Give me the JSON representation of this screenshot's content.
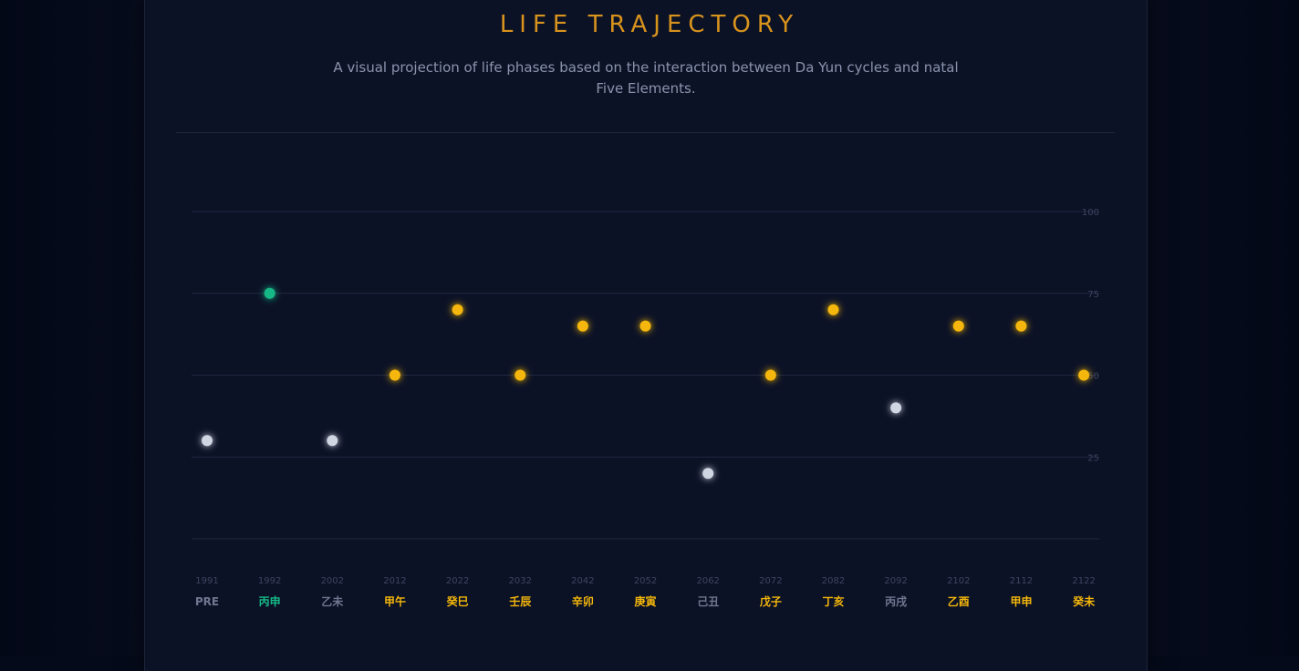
{
  "header": {
    "title": "LIFE TRAJECTORY",
    "subtitle": "A visual projection of life phases based on the interaction between Da Yun cycles and natal Five Elements."
  },
  "colors": {
    "accent": "#d8931c",
    "favorable": "#f5b70a",
    "peak": "#16b886",
    "neutral": "#d0d7e3",
    "gridline": "#1e2740",
    "tick_text": "#3c4560",
    "year_text": "#3c4560",
    "muted_label": "#6f7790"
  },
  "chart_data": {
    "type": "scatter",
    "title": "LIFE TRAJECTORY",
    "xlabel": "",
    "ylabel": "",
    "ylim": [
      0,
      100
    ],
    "yticks": [
      25,
      50,
      75,
      100
    ],
    "grid": true,
    "points": [
      {
        "year": "1991",
        "pillar": "PRE",
        "value": 30,
        "tone": "neutral"
      },
      {
        "year": "1992",
        "pillar": "丙申",
        "value": 75,
        "tone": "peak"
      },
      {
        "year": "2002",
        "pillar": "乙未",
        "value": 30,
        "tone": "neutral"
      },
      {
        "year": "2012",
        "pillar": "甲午",
        "value": 50,
        "tone": "favorable"
      },
      {
        "year": "2022",
        "pillar": "癸巳",
        "value": 70,
        "tone": "favorable"
      },
      {
        "year": "2032",
        "pillar": "壬辰",
        "value": 50,
        "tone": "favorable"
      },
      {
        "year": "2042",
        "pillar": "辛卯",
        "value": 65,
        "tone": "favorable"
      },
      {
        "year": "2052",
        "pillar": "庚寅",
        "value": 65,
        "tone": "favorable"
      },
      {
        "year": "2062",
        "pillar": "己丑",
        "value": 20,
        "tone": "neutral"
      },
      {
        "year": "2072",
        "pillar": "戊子",
        "value": 50,
        "tone": "favorable"
      },
      {
        "year": "2082",
        "pillar": "丁亥",
        "value": 70,
        "tone": "favorable"
      },
      {
        "year": "2092",
        "pillar": "丙戌",
        "value": 40,
        "tone": "neutral"
      },
      {
        "year": "2102",
        "pillar": "乙酉",
        "value": 65,
        "tone": "favorable"
      },
      {
        "year": "2112",
        "pillar": "甲申",
        "value": 65,
        "tone": "favorable"
      },
      {
        "year": "2122",
        "pillar": "癸未",
        "value": 50,
        "tone": "favorable"
      }
    ]
  }
}
